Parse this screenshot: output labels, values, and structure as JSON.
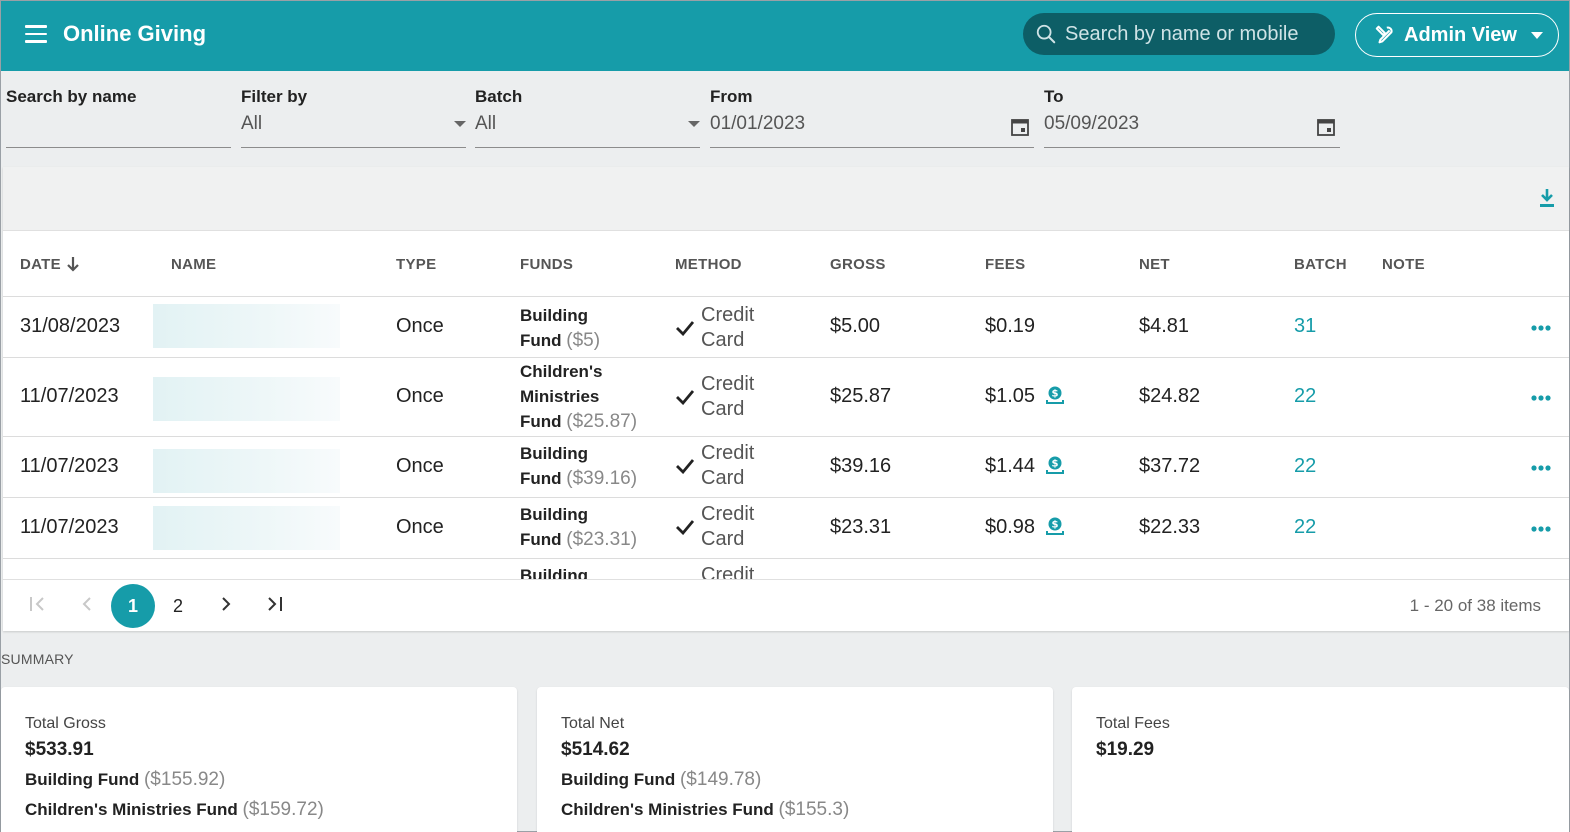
{
  "header": {
    "title": "Online Giving",
    "search_placeholder": "Search by name or mobile",
    "admin_label": "Admin View"
  },
  "filters": {
    "search_name_label": "Search by name",
    "search_name_value": "",
    "filter_by_label": "Filter by",
    "filter_by_value": "All",
    "batch_label": "Batch",
    "batch_value": "All",
    "from_label": "From",
    "from_value": "01/01/2023",
    "to_label": "To",
    "to_value": "05/09/2023"
  },
  "table": {
    "columns": [
      "DATE",
      "NAME",
      "TYPE",
      "FUNDS",
      "METHOD",
      "GROSS",
      "FEES",
      "NET",
      "BATCH",
      "NOTE"
    ],
    "rows": [
      {
        "date": "31/08/2023",
        "type": "Once",
        "fund_l1": "Building",
        "fund_l2": "Fund",
        "fund_l3": "",
        "fund_amt": "($5)",
        "method_l1": "Credit",
        "method_l2": "Card",
        "gross": "$5.00",
        "fees": "$0.19",
        "fee_icon": false,
        "net": "$4.81",
        "batch": "31"
      },
      {
        "date": "11/07/2023",
        "type": "Once",
        "fund_l1": "Children's",
        "fund_l2": "Ministries",
        "fund_l3": "Fund",
        "fund_amt": "($25.87)",
        "method_l1": "Credit",
        "method_l2": "Card",
        "gross": "$25.87",
        "fees": "$1.05",
        "fee_icon": true,
        "net": "$24.82",
        "batch": "22"
      },
      {
        "date": "11/07/2023",
        "type": "Once",
        "fund_l1": "Building",
        "fund_l2": "Fund",
        "fund_l3": "",
        "fund_amt": "($39.16)",
        "method_l1": "Credit",
        "method_l2": "Card",
        "gross": "$39.16",
        "fees": "$1.44",
        "fee_icon": true,
        "net": "$37.72",
        "batch": "22"
      },
      {
        "date": "11/07/2023",
        "type": "Once",
        "fund_l1": "Building",
        "fund_l2": "Fund",
        "fund_l3": "",
        "fund_amt": "($23.31)",
        "method_l1": "Credit",
        "method_l2": "Card",
        "gross": "$23.31",
        "fees": "$0.98",
        "fee_icon": true,
        "net": "$22.33",
        "batch": "22"
      },
      {
        "date": "",
        "type": "",
        "fund_l1": "Building",
        "fund_l2": "",
        "fund_l3": "",
        "fund_amt": "",
        "method_l1": "Credit",
        "method_l2": "",
        "gross": "",
        "fees": "",
        "fee_icon": false,
        "net": "",
        "batch": ""
      }
    ]
  },
  "pager": {
    "pages": [
      "1",
      "2"
    ],
    "current": "1",
    "info": "1 - 20 of 38 items"
  },
  "summary": {
    "label": "SUMMARY",
    "gross": {
      "title": "Total Gross",
      "value": "$533.91",
      "f1_name": "Building Fund",
      "f1_amt": "($155.92)",
      "f2_name": "Children's Ministries Fund",
      "f2_amt": "($159.72)"
    },
    "net": {
      "title": "Total Net",
      "value": "$514.62",
      "f1_name": "Building Fund",
      "f1_amt": "($149.78)",
      "f2_name": "Children's Ministries Fund",
      "f2_amt": "($155.3)"
    },
    "fees": {
      "title": "Total Fees",
      "value": "$19.29"
    }
  },
  "colors": {
    "accent": "#169ca9",
    "search_bg": "#0d5e66"
  }
}
